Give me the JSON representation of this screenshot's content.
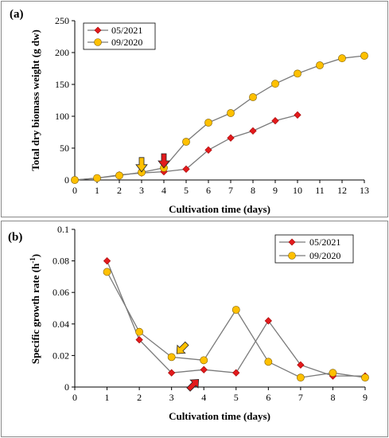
{
  "chart_data": [
    {
      "type": "line",
      "panel_label": "(a)",
      "xlabel": "Cultivation time (days)",
      "ylabel": "Total dry biomass weight (g dw)",
      "xlim": [
        0,
        13
      ],
      "ylim": [
        0,
        250
      ],
      "xticks": [
        "0",
        "1",
        "2",
        "3",
        "4",
        "5",
        "6",
        "7",
        "8",
        "9",
        "10",
        "11",
        "12",
        "13"
      ],
      "yticks": [
        "0",
        "50",
        "100",
        "150",
        "200",
        "250"
      ],
      "grid": false,
      "legend_position": "top-left",
      "series": [
        {
          "name": "05/2021",
          "marker": "diamond",
          "color": "#e31a1c",
          "x": [
            0,
            1,
            2,
            3,
            4,
            5,
            6,
            7,
            8,
            9,
            10
          ],
          "y": [
            0,
            3,
            8,
            11,
            13,
            17,
            47,
            66,
            77,
            93,
            102
          ]
        },
        {
          "name": "09/2020",
          "marker": "circle",
          "color": "#ffc000",
          "x": [
            0,
            1,
            2,
            3,
            4,
            5,
            6,
            7,
            8,
            9,
            10,
            11,
            12,
            13
          ],
          "y": [
            0,
            3,
            7,
            12,
            19,
            60,
            90,
            105,
            130,
            151,
            167,
            180,
            191,
            195
          ]
        }
      ],
      "annotations": [
        {
          "type": "arrow-down",
          "color": "#ffc000",
          "x": 3,
          "y": 24
        },
        {
          "type": "arrow-down",
          "color": "#e31a1c",
          "x": 4,
          "y": 30
        }
      ]
    },
    {
      "type": "line",
      "panel_label": "(b)",
      "xlabel": "Cultivation time (days)",
      "ylabel": "Specific growth rate (h",
      "ylabel_superscript": "-1",
      "ylabel_tail": ")",
      "xlim": [
        0,
        9
      ],
      "ylim": [
        0,
        0.1
      ],
      "xticks": [
        "0",
        "1",
        "2",
        "3",
        "4",
        "5",
        "6",
        "7",
        "8",
        "9"
      ],
      "yticks": [
        "0",
        "0.02",
        "0.04",
        "0.06",
        "0.08",
        "0.1"
      ],
      "grid": false,
      "legend_position": "top-right",
      "series": [
        {
          "name": "05/2021",
          "marker": "diamond",
          "color": "#e31a1c",
          "x": [
            1,
            2,
            3,
            4,
            5,
            6,
            7,
            8,
            9
          ],
          "y": [
            0.08,
            0.03,
            0.009,
            0.011,
            0.009,
            0.042,
            0.014,
            0.007,
            0.007
          ]
        },
        {
          "name": "09/2020",
          "marker": "circle",
          "color": "#ffc000",
          "x": [
            1,
            2,
            3,
            4,
            5,
            6,
            7,
            8,
            9
          ],
          "y": [
            0.073,
            0.035,
            0.019,
            0.017,
            0.049,
            0.016,
            0.006,
            0.009,
            0.006
          ]
        }
      ],
      "annotations": [
        {
          "type": "arrow-down-left",
          "color": "#ffc000",
          "x": 3.3,
          "y": 0.024
        },
        {
          "type": "arrow-up-right",
          "color": "#e31a1c",
          "x": 3.7,
          "y": 0.002
        }
      ]
    }
  ]
}
